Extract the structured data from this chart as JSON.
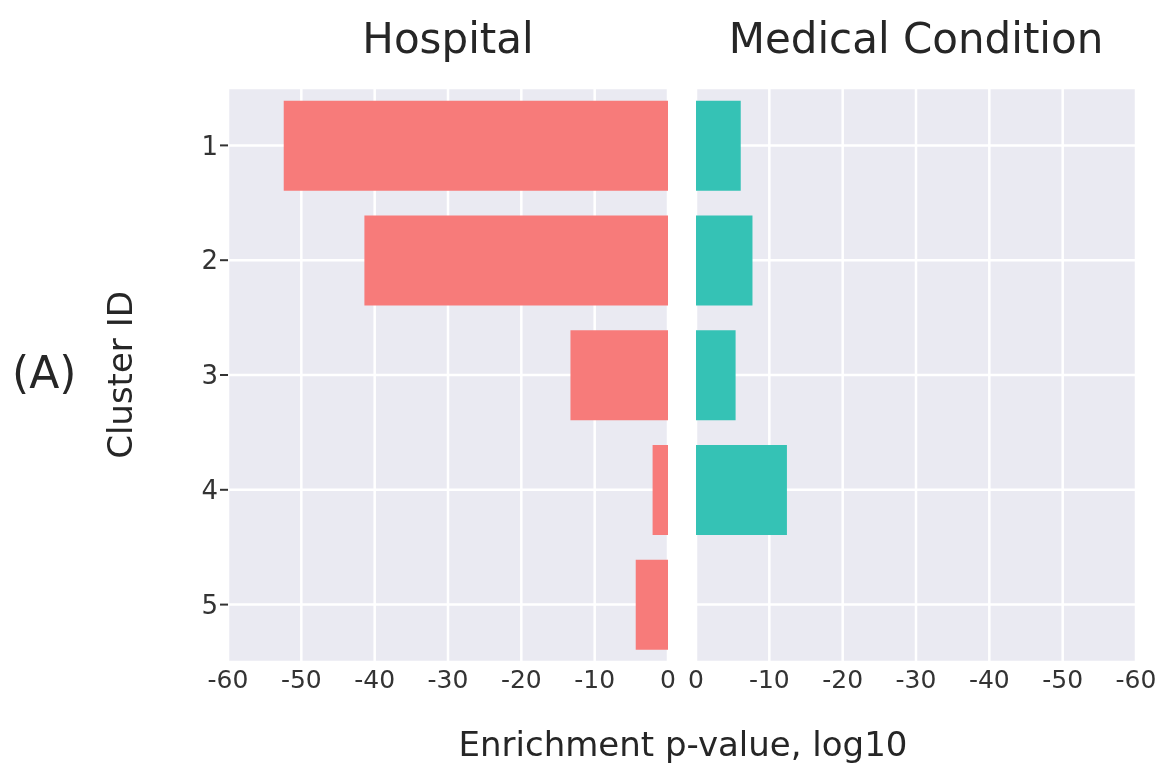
{
  "chart_data": [
    {
      "type": "bar",
      "orientation": "horizontal",
      "title": "Hospital",
      "ylabel": "Cluster ID",
      "xlabel": "Enrichment p-value, log10",
      "annotations": [
        "(A)"
      ],
      "categories": [
        "1",
        "2",
        "3",
        "4",
        "5"
      ],
      "series": [
        {
          "color": "#f77b7a",
          "values": [
            -52.4,
            -41.4,
            -13.3,
            -2.1,
            -4.4
          ]
        }
      ],
      "xlim": [
        -60,
        0
      ],
      "xticks": [
        -60,
        -50,
        -40,
        -30,
        -20,
        -10,
        0
      ],
      "grid": true,
      "legend": false
    },
    {
      "type": "bar",
      "orientation": "horizontal",
      "title": "Medical Condition",
      "categories": [
        "1",
        "2",
        "3",
        "4",
        "5"
      ],
      "series": [
        {
          "color": "#35c2b5",
          "values": [
            -6.1,
            -7.7,
            -5.4,
            -12.4,
            null
          ]
        }
      ],
      "xlim": [
        0,
        -60
      ],
      "xticks": [
        0,
        -10,
        -20,
        -30,
        -40,
        -50,
        -60
      ],
      "grid": true,
      "legend": false,
      "tick_labels": "x"
    }
  ]
}
